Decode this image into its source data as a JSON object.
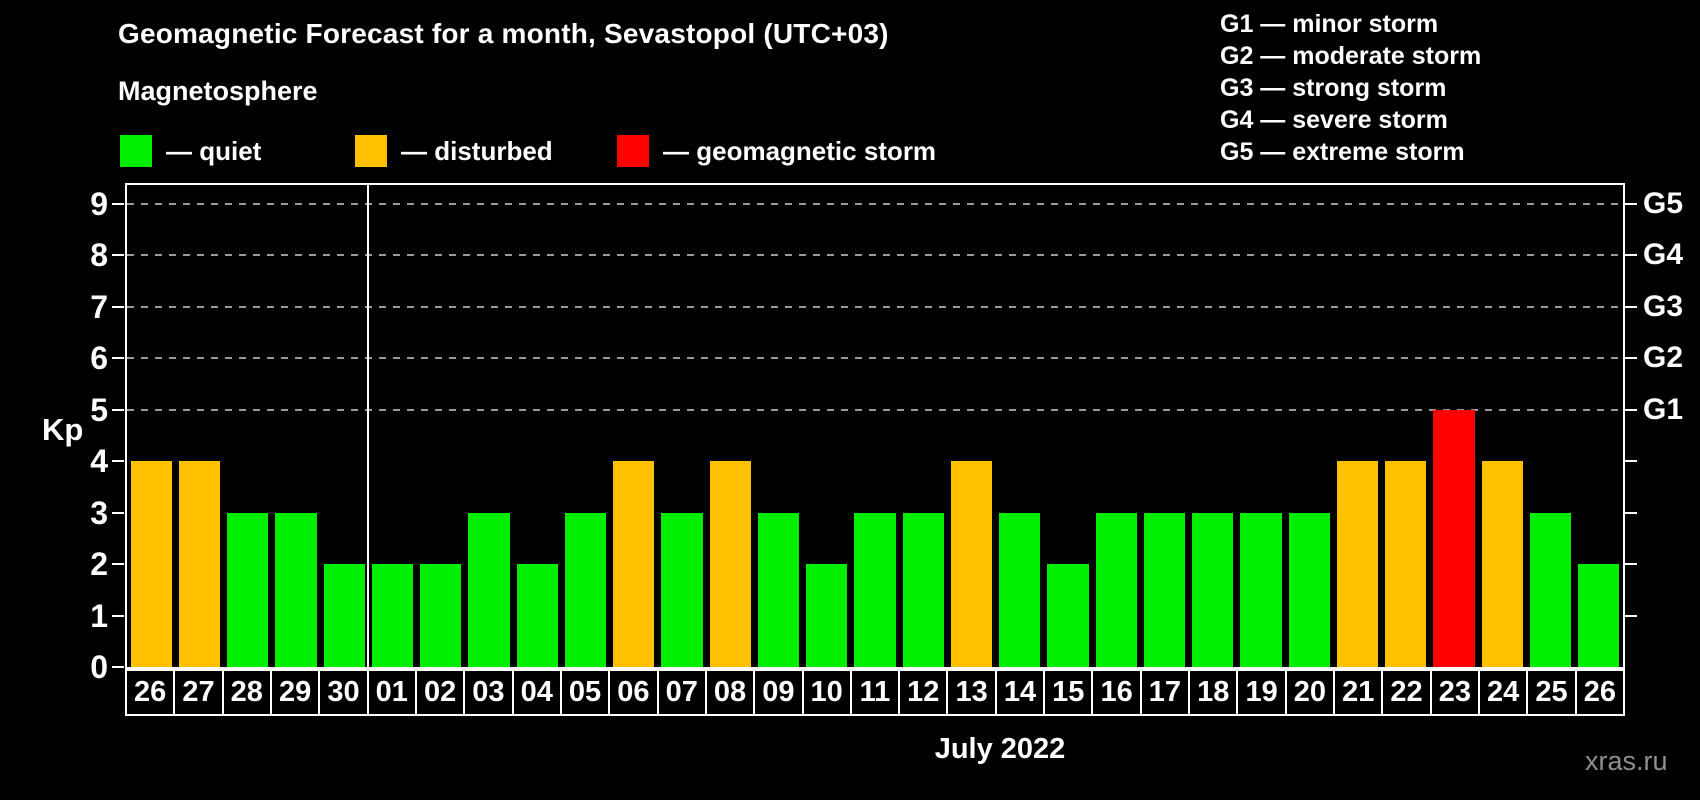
{
  "subtitle": "Magnetosphere",
  "watermark": "xras.ru",
  "legend": {
    "items": [
      {
        "name": "quiet",
        "label": "— quiet",
        "color": "#00ee00"
      },
      {
        "name": "disturbed",
        "label": "— disturbed",
        "color": "#ffc000"
      },
      {
        "name": "storm",
        "label": "— geomagnetic storm",
        "color": "#ff0000"
      }
    ]
  },
  "g_scale_legend": [
    "G1 — minor storm",
    "G2 — moderate storm",
    "G3 — strong storm",
    "G4 — severe storm",
    "G5 — extreme storm"
  ],
  "chart_data": {
    "type": "bar",
    "title": "Geomagnetic Forecast for a month, Sevastopol (UTC+03)",
    "xlabel": "July 2022",
    "ylabel": "Kp",
    "ylim": [
      0,
      9.4
    ],
    "yticks": [
      0,
      1,
      2,
      3,
      4,
      5,
      6,
      7,
      8,
      9
    ],
    "gridlines_at": [
      5,
      6,
      7,
      8,
      9
    ],
    "grid_style": "dashed",
    "legend_position": "top",
    "right_axis_labels": [
      {
        "level": 5,
        "label": "G1"
      },
      {
        "level": 6,
        "label": "G2"
      },
      {
        "level": 7,
        "label": "G3"
      },
      {
        "level": 8,
        "label": "G4"
      },
      {
        "level": 9,
        "label": "G5"
      }
    ],
    "month_separator_after_index": 4,
    "categories": [
      "26",
      "27",
      "28",
      "29",
      "30",
      "01",
      "02",
      "03",
      "04",
      "05",
      "06",
      "07",
      "08",
      "09",
      "10",
      "11",
      "12",
      "13",
      "14",
      "15",
      "16",
      "17",
      "18",
      "19",
      "20",
      "21",
      "22",
      "23",
      "24",
      "25",
      "26"
    ],
    "values": [
      4,
      4,
      3,
      3,
      2,
      2,
      2,
      3,
      2,
      3,
      4,
      3,
      4,
      3,
      2,
      3,
      3,
      4,
      3,
      2,
      3,
      3,
      3,
      3,
      3,
      4,
      4,
      5,
      4,
      3,
      2
    ],
    "statuses": [
      "disturbed",
      "disturbed",
      "quiet",
      "quiet",
      "quiet",
      "quiet",
      "quiet",
      "quiet",
      "quiet",
      "quiet",
      "disturbed",
      "quiet",
      "disturbed",
      "quiet",
      "quiet",
      "quiet",
      "quiet",
      "disturbed",
      "quiet",
      "quiet",
      "quiet",
      "quiet",
      "quiet",
      "quiet",
      "quiet",
      "disturbed",
      "disturbed",
      "storm",
      "disturbed",
      "quiet",
      "quiet"
    ],
    "colors_by_status": {
      "quiet": "#00ee00",
      "disturbed": "#ffc000",
      "storm": "#ff0000"
    }
  }
}
